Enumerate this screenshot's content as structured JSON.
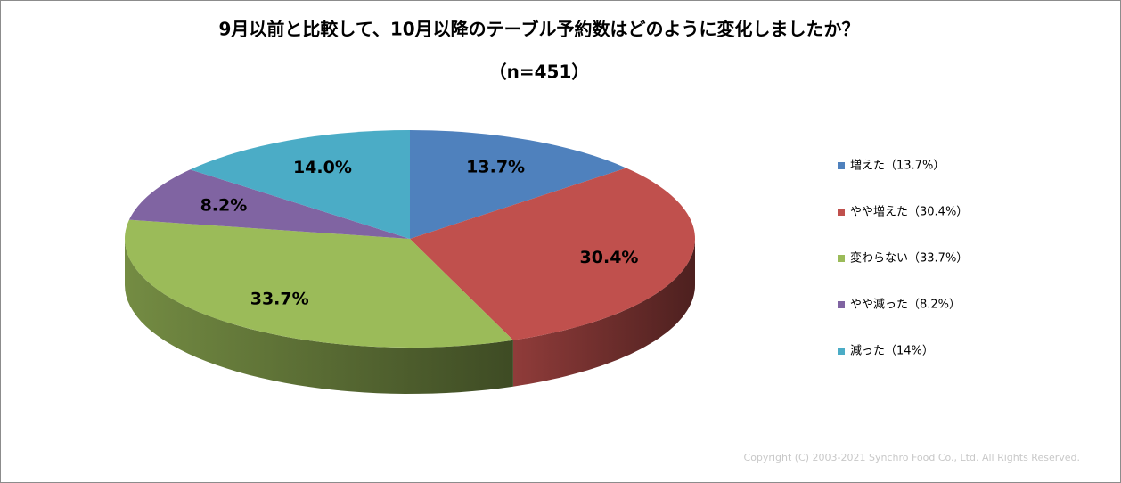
{
  "chart_data": {
    "type": "pie",
    "title": "9月以前と比較して、10月以降のテーブル予約数はどのように変化しましたか？",
    "subtitle": "（n=451）",
    "categories": [
      "増えた（13.7%）",
      "やや増えた（30.4%）",
      "変わらない（33.7%）",
      "やや減った（8.2%）",
      "減った（14%）"
    ],
    "values": [
      13.7,
      30.4,
      33.7,
      8.2,
      14.0
    ],
    "value_labels": [
      "13.7%",
      "30.4%",
      "33.7%",
      "8.2%",
      "14.0%"
    ],
    "colors": [
      "#4f81bd",
      "#c0504d",
      "#9bbb59",
      "#8064a2",
      "#4bacc6"
    ],
    "legend": "right",
    "copyright": "Copyright (C) 2003-2021   Synchro Food Co., Ltd. All Rights Reserved."
  }
}
